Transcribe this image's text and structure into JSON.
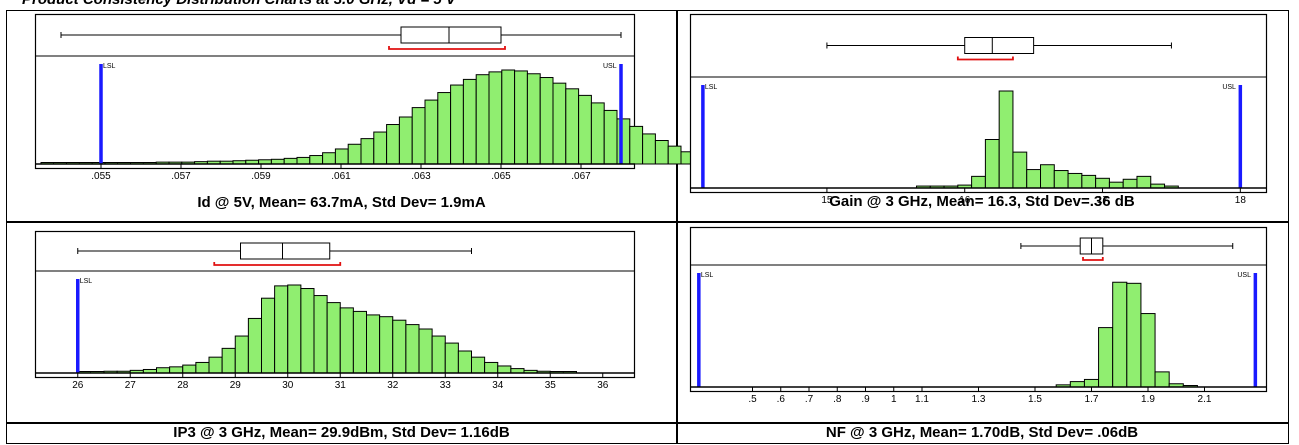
{
  "page": {
    "title": "Product Consistency Distribution Charts at 3.0 GHz, Vd = 5 V"
  },
  "colors": {
    "bar_fill": "#90ee70",
    "bar_stroke": "#000000",
    "spec_line": "#1a1aff",
    "bracket": "#e01010"
  },
  "chart_data": [
    {
      "type": "bar",
      "subtype": "histogram_with_boxplot",
      "caption": "Id @ 5V, Mean= 63.7mA, Std Dev= 1.9mA",
      "x_ticks": [
        ".055",
        ".057",
        ".059",
        ".061",
        ".063",
        ".065",
        ".067"
      ],
      "x_tick_values": [
        0.055,
        0.057,
        0.059,
        0.061,
        0.063,
        0.065,
        0.067
      ],
      "xlim": [
        0.0535,
        0.0682
      ],
      "spec_labels": [
        "LSL",
        "USL"
      ],
      "lsl": 0.055,
      "usl": 0.068,
      "bin_start": 0.0535,
      "bin_width": 0.00032,
      "relative_counts": [
        0.01,
        0.01,
        0.01,
        0.01,
        0.01,
        0.01,
        0.01,
        0.01,
        0.015,
        0.02,
        0.02,
        0.02,
        0.025,
        0.03,
        0.03,
        0.035,
        0.04,
        0.045,
        0.05,
        0.06,
        0.07,
        0.09,
        0.12,
        0.16,
        0.21,
        0.27,
        0.34,
        0.42,
        0.5,
        0.6,
        0.68,
        0.76,
        0.84,
        0.9,
        0.95,
        0.98,
        1.0,
        0.99,
        0.96,
        0.92,
        0.86,
        0.8,
        0.73,
        0.65,
        0.57,
        0.48,
        0.4,
        0.32,
        0.25,
        0.19,
        0.13,
        0.09,
        0.06
      ],
      "box": {
        "min": 0.054,
        "q1": 0.0625,
        "median": 0.0637,
        "q3": 0.065,
        "max": 0.068
      },
      "bracket": [
        0.0622,
        0.0651
      ]
    },
    {
      "type": "bar",
      "subtype": "histogram_with_boxplot",
      "caption": "Gain @ 3 GHz, Mean= 16.3, Std Dev=.36 dB",
      "x_ticks": [
        "15",
        "16",
        "17",
        "18"
      ],
      "x_tick_values": [
        15,
        16,
        17,
        18
      ],
      "xlim": [
        14.05,
        18.15
      ],
      "spec_labels": [
        "LSL",
        "USL"
      ],
      "lsl": 14.1,
      "usl": 18.0,
      "bin_start": 15.65,
      "bin_width": 0.1,
      "relative_counts": [
        0.02,
        0.02,
        0.02,
        0.03,
        0.12,
        0.5,
        1.0,
        0.37,
        0.19,
        0.24,
        0.18,
        0.15,
        0.13,
        0.1,
        0.06,
        0.09,
        0.12,
        0.04,
        0.02
      ],
      "box": {
        "min": 15.0,
        "q1": 16.0,
        "median": 16.2,
        "q3": 16.5,
        "max": 17.5
      },
      "bracket": [
        15.95,
        16.35
      ]
    },
    {
      "type": "bar",
      "subtype": "histogram_with_boxplot",
      "caption": "IP3 @ 3 GHz, Mean= 29.9dBm, Std Dev= 1.16dB",
      "x_ticks": [
        "26",
        "27",
        "28",
        "29",
        "30",
        "31",
        "32",
        "33",
        "34",
        "35",
        "36"
      ],
      "x_tick_values": [
        26,
        27,
        28,
        29,
        30,
        31,
        32,
        33,
        34,
        35,
        36
      ],
      "xlim": [
        25.3,
        36.5
      ],
      "spec_labels": [
        "LSL"
      ],
      "lsl": 26.0,
      "bin_start": 26.0,
      "bin_width": 0.25,
      "relative_counts": [
        0.01,
        0.01,
        0.02,
        0.02,
        0.03,
        0.04,
        0.06,
        0.07,
        0.09,
        0.12,
        0.18,
        0.28,
        0.42,
        0.62,
        0.85,
        0.99,
        1.0,
        0.96,
        0.88,
        0.8,
        0.74,
        0.7,
        0.66,
        0.64,
        0.6,
        0.55,
        0.5,
        0.42,
        0.34,
        0.25,
        0.18,
        0.12,
        0.08,
        0.05,
        0.03,
        0.02,
        0.01,
        0.01
      ],
      "box": {
        "min": 26.0,
        "q1": 29.1,
        "median": 29.9,
        "q3": 30.8,
        "max": 33.5
      },
      "bracket": [
        28.6,
        31.0
      ]
    },
    {
      "type": "bar",
      "subtype": "histogram_with_boxplot",
      "caption": "NF @ 3 GHz, Mean= 1.70dB, Std Dev= .06dB",
      "x_ticks": [
        ".5",
        ".6",
        ".7",
        ".8",
        ".9",
        "1",
        "1.1",
        "1.3",
        "1.5",
        "1.7",
        "1.9",
        "2.1"
      ],
      "x_tick_values": [
        0.5,
        0.6,
        0.7,
        0.8,
        0.9,
        1.0,
        1.1,
        1.3,
        1.5,
        1.7,
        1.9,
        2.1
      ],
      "xlim": [
        0.3,
        2.3
      ],
      "spec_labels": [
        "LSL",
        "USL"
      ],
      "lsl": 0.31,
      "usl": 2.28,
      "bin_start": 1.575,
      "bin_width": 0.05,
      "relative_counts": [
        0.02,
        0.05,
        0.07,
        0.55,
        0.97,
        0.96,
        0.68,
        0.14,
        0.03,
        0.01
      ],
      "box": {
        "min": 1.45,
        "q1": 1.66,
        "median": 1.7,
        "q3": 1.74,
        "max": 2.2
      },
      "bracket": [
        1.67,
        1.74
      ]
    }
  ]
}
